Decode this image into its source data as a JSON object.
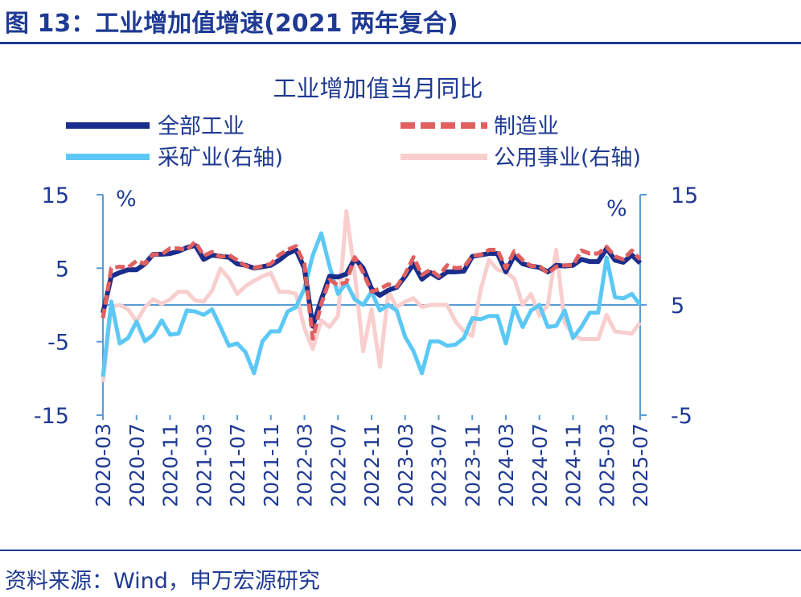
{
  "figure": {
    "title": "图 13：工业增加值增速(2021 两年复合)",
    "source": "资料来源：Wind，申万宏源研究"
  },
  "chart_data": {
    "type": "line",
    "title": "工业增加值当月同比",
    "left_axis": {
      "unit": "%",
      "ticks": [
        15,
        5,
        -5,
        -15
      ],
      "range": [
        -15,
        15
      ]
    },
    "right_axis": {
      "unit": "%",
      "ticks": [
        15,
        5,
        -5
      ],
      "range": [
        -5,
        15
      ]
    },
    "x_tick_labels": [
      "2020-03",
      "2020-07",
      "2020-11",
      "2021-03",
      "2021-07",
      "2021-11",
      "2022-03",
      "2022-07",
      "2022-11",
      "2023-03",
      "2023-07",
      "2023-11",
      "2024-03",
      "2024-07",
      "2024-11",
      "2025-03",
      "2025-07"
    ],
    "x": [
      "2020-03",
      "2020-04",
      "2020-05",
      "2020-06",
      "2020-07",
      "2020-08",
      "2020-09",
      "2020-10",
      "2020-11",
      "2020-12",
      "2021-01",
      "2021-02",
      "2021-03",
      "2021-04",
      "2021-05",
      "2021-06",
      "2021-07",
      "2021-08",
      "2021-09",
      "2021-10",
      "2021-11",
      "2021-12",
      "2022-01",
      "2022-02",
      "2022-03",
      "2022-04",
      "2022-05",
      "2022-06",
      "2022-07",
      "2022-08",
      "2022-09",
      "2022-10",
      "2022-11",
      "2022-12",
      "2023-01",
      "2023-02",
      "2023-03",
      "2023-04",
      "2023-05",
      "2023-06",
      "2023-07",
      "2023-08",
      "2023-09",
      "2023-10",
      "2023-11",
      "2023-12",
      "2024-01",
      "2024-02",
      "2024-03",
      "2024-04",
      "2024-05",
      "2024-06",
      "2024-07",
      "2024-08",
      "2024-09",
      "2024-10",
      "2024-11",
      "2024-12",
      "2025-01",
      "2025-02",
      "2025-03",
      "2025-04",
      "2025-05",
      "2025-06",
      "2025-07"
    ],
    "series": [
      {
        "name": "全部工业",
        "axis": "left",
        "color": "#1a2d8c",
        "style": "solid",
        "values": [
          -1.1,
          3.9,
          4.4,
          4.8,
          4.8,
          5.6,
          6.9,
          6.9,
          7.0,
          7.3,
          7.8,
          8.1,
          6.2,
          6.8,
          6.6,
          6.5,
          5.6,
          5.4,
          5.0,
          5.2,
          5.4,
          6.1,
          7.0,
          7.5,
          5.0,
          -2.9,
          0.7,
          3.9,
          3.8,
          4.2,
          6.3,
          5.0,
          2.2,
          1.3,
          2.0,
          2.4,
          3.9,
          5.6,
          3.5,
          4.4,
          3.7,
          4.5,
          4.5,
          4.6,
          6.6,
          6.8,
          7.0,
          7.0,
          4.5,
          6.7,
          5.6,
          5.3,
          5.1,
          4.5,
          5.4,
          5.3,
          5.4,
          6.2,
          5.9,
          5.9,
          7.7,
          6.1,
          5.8,
          6.8,
          5.7
        ]
      },
      {
        "name": "制造业",
        "axis": "left",
        "color": "#e06060",
        "style": "dashed",
        "values": [
          -1.8,
          5.0,
          5.2,
          5.1,
          6.0,
          5.6,
          6.9,
          6.9,
          7.7,
          7.7,
          7.5,
          8.6,
          6.7,
          7.2,
          6.5,
          6.8,
          6.1,
          5.3,
          5.0,
          5.3,
          5.6,
          6.8,
          7.5,
          8.0,
          5.6,
          -4.6,
          0.1,
          3.4,
          2.7,
          3.1,
          6.5,
          4.4,
          1.8,
          2.2,
          2.8,
          2.5,
          4.2,
          6.5,
          4.1,
          4.8,
          3.9,
          5.4,
          5.0,
          5.1,
          6.7,
          6.8,
          7.5,
          7.5,
          5.0,
          7.3,
          6.1,
          5.3,
          5.3,
          4.3,
          5.2,
          5.4,
          5.4,
          7.4,
          7.0,
          7.0,
          7.9,
          6.6,
          6.2,
          7.4,
          6.2
        ]
      },
      {
        "name": "采矿业(右轴)",
        "axis": "right",
        "color": "#5bc8f5",
        "style": "solid",
        "values": [
          -1.5,
          5.3,
          1.5,
          2.0,
          3.5,
          1.7,
          2.3,
          3.6,
          2.3,
          2.4,
          4.5,
          4.4,
          4.1,
          4.6,
          3.0,
          1.3,
          1.5,
          0.7,
          -1.2,
          1.7,
          2.6,
          2.6,
          4.4,
          4.8,
          6.5,
          9.5,
          11.5,
          8.5,
          6.0,
          7.0,
          5.5,
          5.0,
          6.2,
          4.5,
          5.0,
          4.5,
          2.1,
          0.8,
          -1.2,
          1.7,
          1.7,
          1.3,
          1.4,
          2.0,
          3.8,
          3.7,
          4.0,
          4.0,
          1.5,
          4.8,
          3.0,
          4.5,
          5.0,
          3.0,
          3.1,
          4.5,
          2.0,
          3.0,
          4.3,
          4.3,
          9.3,
          5.7,
          5.6,
          6.0,
          5.0
        ]
      },
      {
        "name": "公用事业(右轴)",
        "axis": "right",
        "color": "#f8cece",
        "style": "solid",
        "values": [
          -2.0,
          4.8,
          5.0,
          4.6,
          3.5,
          4.8,
          5.5,
          5.1,
          5.5,
          6.2,
          6.2,
          5.4,
          5.3,
          6.3,
          8.3,
          7.4,
          6.0,
          6.7,
          7.2,
          7.6,
          7.9,
          6.2,
          6.2,
          6.0,
          2.9,
          1.0,
          3.6,
          3.0,
          4.0,
          13.5,
          7.8,
          0.8,
          4.6,
          -0.6,
          6.2,
          4.8,
          5.3,
          5.6,
          4.8,
          5.0,
          5.0,
          5.0,
          3.5,
          2.6,
          2.2,
          6.4,
          9.1,
          8.2,
          8.0,
          7.4,
          5.0,
          6.0,
          4.0,
          5.0,
          10.0,
          3.4,
          2.3,
          1.9,
          1.9,
          1.9,
          4.1,
          2.6,
          2.5,
          2.4,
          3.4
        ]
      }
    ],
    "grid": false,
    "legend_position": "top"
  }
}
